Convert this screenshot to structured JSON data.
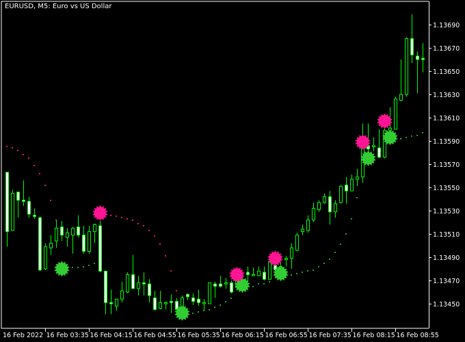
{
  "window": {
    "title": "EURUSD, M5:  Euro vs US Dollar"
  },
  "colors": {
    "background": "#000000",
    "axis": "#ffffff",
    "candle_outline": "#00ff00",
    "bear_fill": "#ffffff",
    "bull_fill": "#000000",
    "sell_signal": "#ff1493",
    "buy_signal": "#32cd32",
    "resistance_dots": "#e0204a",
    "support_dots": "#2e9e2e"
  },
  "chart_data": {
    "type": "candlestick",
    "symbol": "EURUSD",
    "timeframe": "M5",
    "ylim": [
      1.1344,
      1.13705
    ],
    "price_ticks": [
      "1.13690",
      "1.13670",
      "1.13650",
      "1.13630",
      "1.13610",
      "1.13590",
      "1.13570",
      "1.13550",
      "1.13530",
      "1.13510",
      "1.13490",
      "1.13470",
      "1.13450"
    ],
    "time_ticks": [
      {
        "bar": -1,
        "label": "16 Feb 2022"
      },
      {
        "bar": 7,
        "label": "16 Feb 03:35"
      },
      {
        "bar": 15,
        "label": "16 Feb 04:15"
      },
      {
        "bar": 23,
        "label": "16 Feb 04:55"
      },
      {
        "bar": 31,
        "label": "16 Feb 05:35"
      },
      {
        "bar": 39,
        "label": "16 Feb 06:15"
      },
      {
        "bar": 47,
        "label": "16 Feb 06:55"
      },
      {
        "bar": 55,
        "label": "16 Feb 07:35"
      },
      {
        "bar": 63,
        "label": "16 Feb 08:15"
      },
      {
        "bar": 71,
        "label": "16 Feb 08:55"
      }
    ],
    "ohlc_fields": [
      "open",
      "high",
      "low",
      "close"
    ],
    "candles": [
      [
        1.13563,
        1.13563,
        1.13499,
        1.13512
      ],
      [
        1.13513,
        1.13548,
        1.13513,
        1.13545
      ],
      [
        1.13546,
        1.13546,
        1.13524,
        1.13539
      ],
      [
        1.13539,
        1.13556,
        1.13534,
        1.13538
      ],
      [
        1.13538,
        1.13542,
        1.13524,
        1.13527
      ],
      [
        1.13526,
        1.13532,
        1.13523,
        1.13525
      ],
      [
        1.13524,
        1.13525,
        1.13478,
        1.13479
      ],
      [
        1.1348,
        1.13502,
        1.13479,
        1.13499
      ],
      [
        1.13498,
        1.13509,
        1.13492,
        1.13502
      ],
      [
        1.13504,
        1.13522,
        1.13498,
        1.13515
      ],
      [
        1.13516,
        1.13521,
        1.13504,
        1.13509
      ],
      [
        1.13507,
        1.13515,
        1.13499,
        1.13511
      ],
      [
        1.13509,
        1.13516,
        1.13493,
        1.13515
      ],
      [
        1.13516,
        1.13526,
        1.13507,
        1.13509
      ],
      [
        1.13509,
        1.13517,
        1.13493,
        1.13495
      ],
      [
        1.13495,
        1.13517,
        1.13493,
        1.13512
      ],
      [
        1.13512,
        1.13519,
        1.13502,
        1.13518
      ],
      [
        1.13517,
        1.13521,
        1.13477,
        1.13478
      ],
      [
        1.13478,
        1.13478,
        1.13441,
        1.13451
      ],
      [
        1.13451,
        1.13462,
        1.13441,
        1.1345
      ],
      [
        1.13448,
        1.13454,
        1.13444,
        1.13454
      ],
      [
        1.13454,
        1.13469,
        1.13451,
        1.13461
      ],
      [
        1.1346,
        1.13477,
        1.13459,
        1.13475
      ],
      [
        1.13475,
        1.13492,
        1.13463,
        1.13463
      ],
      [
        1.13463,
        1.13474,
        1.13457,
        1.13468
      ],
      [
        1.13468,
        1.13477,
        1.13457,
        1.13467
      ],
      [
        1.13467,
        1.13471,
        1.13451,
        1.13457
      ],
      [
        1.13455,
        1.13461,
        1.13444,
        1.13445
      ],
      [
        1.13446,
        1.13461,
        1.13445,
        1.13451
      ],
      [
        1.1345,
        1.13452,
        1.13445,
        1.13451
      ],
      [
        1.13452,
        1.13458,
        1.13442,
        1.13451
      ],
      [
        1.13452,
        1.13455,
        1.13444,
        1.13445
      ],
      [
        1.13447,
        1.13457,
        1.13447,
        1.13455
      ],
      [
        1.13458,
        1.13459,
        1.13453,
        1.13456
      ],
      [
        1.13455,
        1.13459,
        1.13449,
        1.13452
      ],
      [
        1.13454,
        1.13462,
        1.13448,
        1.13451
      ],
      [
        1.1345,
        1.13454,
        1.13444,
        1.13451
      ],
      [
        1.1345,
        1.13468,
        1.1345,
        1.13468
      ],
      [
        1.13467,
        1.13469,
        1.13455,
        1.13465
      ],
      [
        1.13467,
        1.13474,
        1.13464,
        1.13465
      ],
      [
        1.13467,
        1.13472,
        1.13463,
        1.13468
      ],
      [
        1.13468,
        1.1347,
        1.13459,
        1.1346
      ],
      [
        1.13464,
        1.13475,
        1.13461,
        1.13473
      ],
      [
        1.13465,
        1.13476,
        1.13463,
        1.1347
      ],
      [
        1.13477,
        1.13482,
        1.13469,
        1.13475
      ],
      [
        1.13475,
        1.13481,
        1.13474,
        1.13475
      ],
      [
        1.13474,
        1.13482,
        1.13474,
        1.13478
      ],
      [
        1.13477,
        1.13482,
        1.1347,
        1.13471
      ],
      [
        1.13471,
        1.13489,
        1.13471,
        1.13486
      ],
      [
        1.13483,
        1.13488,
        1.13478,
        1.13479
      ],
      [
        1.13477,
        1.13485,
        1.13475,
        1.13482
      ],
      [
        1.13488,
        1.13491,
        1.13482,
        1.13489
      ],
      [
        1.13489,
        1.13502,
        1.1348,
        1.13498
      ],
      [
        1.13496,
        1.13511,
        1.13495,
        1.13509
      ],
      [
        1.13512,
        1.13518,
        1.13509,
        1.13514
      ],
      [
        1.13513,
        1.13526,
        1.13511,
        1.13522
      ],
      [
        1.13522,
        1.13537,
        1.1352,
        1.13532
      ],
      [
        1.13531,
        1.13539,
        1.13529,
        1.13537
      ],
      [
        1.13537,
        1.13545,
        1.13536,
        1.13542
      ],
      [
        1.13542,
        1.13547,
        1.13518,
        1.13529
      ],
      [
        1.13529,
        1.13539,
        1.13524,
        1.13536
      ],
      [
        1.13537,
        1.13552,
        1.13536,
        1.13551
      ],
      [
        1.13552,
        1.13559,
        1.13536,
        1.13547
      ],
      [
        1.13547,
        1.13561,
        1.13547,
        1.13557
      ],
      [
        1.13557,
        1.13566,
        1.13551,
        1.13559
      ],
      [
        1.13559,
        1.13605,
        1.13554,
        1.13586
      ],
      [
        1.13586,
        1.13605,
        1.13581,
        1.13583
      ],
      [
        1.13585,
        1.13593,
        1.13581,
        1.13586
      ],
      [
        1.13584,
        1.136,
        1.13575,
        1.13576
      ],
      [
        1.13576,
        1.13602,
        1.13575,
        1.13599
      ],
      [
        1.13599,
        1.13619,
        1.13594,
        1.13601
      ],
      [
        1.136,
        1.13628,
        1.136,
        1.13626
      ],
      [
        1.13625,
        1.1366,
        1.13624,
        1.1363
      ],
      [
        1.1363,
        1.13679,
        1.13628,
        1.13678
      ],
      [
        1.13678,
        1.13699,
        1.13657,
        1.13664
      ],
      [
        1.13663,
        1.13667,
        1.13631,
        1.1366
      ],
      [
        1.13661,
        1.13674,
        1.13649,
        1.1366
      ]
    ],
    "resistance_line": [
      [
        0,
        1.13585
      ],
      [
        1,
        1.13584
      ],
      [
        2,
        1.13582
      ],
      [
        3,
        1.13578
      ],
      [
        4,
        1.13575
      ],
      [
        5,
        1.13569
      ],
      [
        6,
        1.13562
      ],
      [
        7,
        1.13552
      ],
      [
        8,
        1.13539
      ],
      [
        9,
        1.13522
      ],
      [
        19,
        1.13526
      ],
      [
        20,
        1.13525
      ],
      [
        21,
        1.13524
      ],
      [
        22,
        1.13523
      ],
      [
        23,
        1.13522
      ],
      [
        24,
        1.13519
      ],
      [
        25,
        1.13517
      ],
      [
        26,
        1.13513
      ],
      [
        27,
        1.13508
      ],
      [
        28,
        1.13501
      ],
      [
        29,
        1.13491
      ],
      [
        30,
        1.13478
      ],
      [
        31,
        1.13461
      ]
    ],
    "support_line": [
      [
        12,
        1.13481
      ],
      [
        13,
        1.13481
      ],
      [
        14,
        1.13482
      ],
      [
        15,
        1.13483
      ],
      [
        16,
        1.13485
      ],
      [
        34,
        1.13442
      ],
      [
        35,
        1.13443
      ],
      [
        36,
        1.13444
      ],
      [
        37,
        1.13445
      ],
      [
        38,
        1.13447
      ],
      [
        39,
        1.13449
      ],
      [
        40,
        1.13452
      ],
      [
        41,
        1.13455
      ],
      [
        45,
        1.13465
      ],
      [
        46,
        1.13467
      ],
      [
        47,
        1.13467
      ],
      [
        48,
        1.13469
      ],
      [
        52,
        1.13475
      ],
      [
        53,
        1.13476
      ],
      [
        54,
        1.13477
      ],
      [
        55,
        1.13478
      ],
      [
        56,
        1.13479
      ],
      [
        57,
        1.13482
      ],
      [
        58,
        1.13485
      ],
      [
        59,
        1.13488
      ],
      [
        60,
        1.13494
      ],
      [
        61,
        1.13501
      ],
      [
        62,
        1.1351
      ],
      [
        63,
        1.13523
      ],
      [
        64,
        1.13541
      ],
      [
        72,
        1.13592
      ],
      [
        73,
        1.13593
      ],
      [
        74,
        1.13594
      ],
      [
        75,
        1.13595
      ],
      [
        76,
        1.13597
      ]
    ],
    "sell_signals": [
      [
        17,
        1.13528
      ],
      [
        42,
        1.13475
      ],
      [
        49,
        1.13489
      ],
      [
        65,
        1.13589
      ],
      [
        69,
        1.13607
      ]
    ],
    "buy_signals": [
      [
        10,
        1.1348
      ],
      [
        32,
        1.13442
      ],
      [
        43,
        1.13466
      ],
      [
        50,
        1.13476
      ],
      [
        66,
        1.13575
      ],
      [
        70,
        1.13593
      ]
    ],
    "signal_icon": "starburst-icon"
  }
}
